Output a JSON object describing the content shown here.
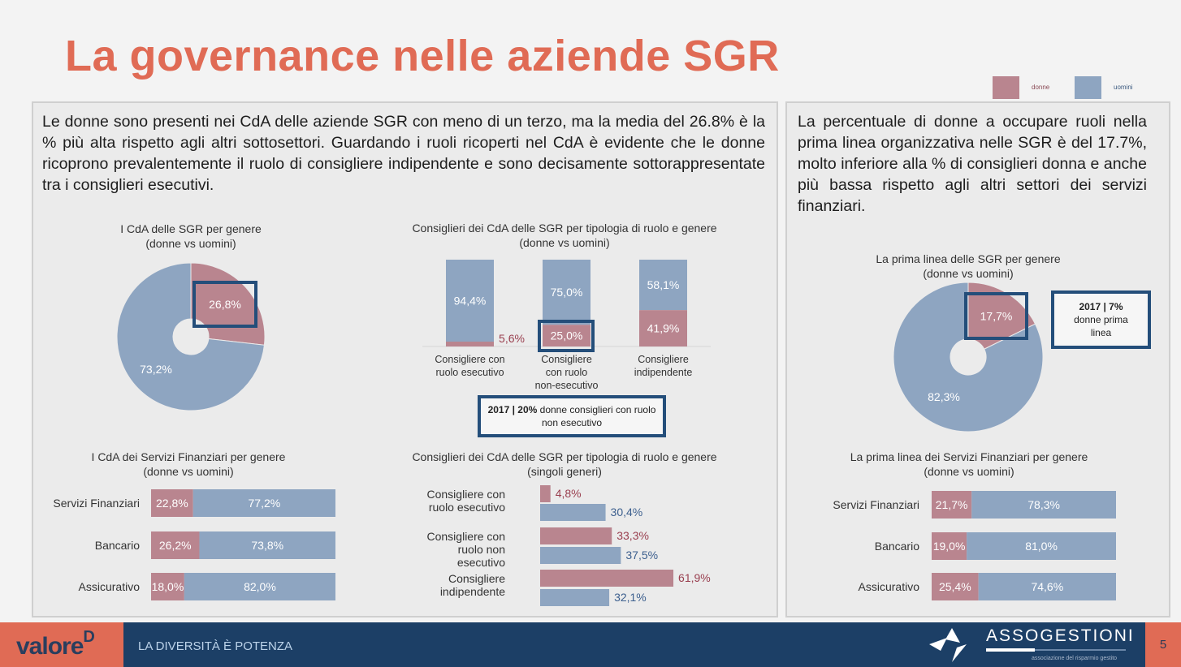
{
  "title": "La governance nelle aziende SGR",
  "legend": {
    "donne": "donne",
    "uomini": "uomini"
  },
  "colors": {
    "donne": "#b9858f",
    "uomini": "#8ea5c1",
    "accent": "#e06b55",
    "navy": "#1c3f66",
    "box": "#244e7a"
  },
  "left_text": "Le donne sono presenti nei CdA delle aziende SGR con meno di un terzo, ma la media del 26.8% è la % più alta rispetto agli altri sottosettori. Guardando i ruoli ricoperti nel CdA è evidente che le donne ricoprono prevalentemente il ruolo di consigliere indipendente e sono decisamente sottorappresentate tra i consiglieri esecutivi.",
  "right_text": "La percentuale di donne a occupare ruoli nella prima linea organizzativa nelle SGR è del 17.7%, molto inferiore alla % di consiglieri donna e anche più bassa rispetto agli altri settori dei servizi finanziari.",
  "notes": {
    "board": {
      "bold": "2017 | 20%",
      "text": " donne consiglieri con ruolo non esecutivo"
    },
    "firstline": {
      "bold": "2017 | 7%",
      "text": "donne prima linea"
    }
  },
  "chart_data": [
    {
      "id": "cda-sgr",
      "type": "pie",
      "title": "I CdA delle SGR per genere",
      "subtitle": "(donne vs uomini)",
      "labels": [
        "donne",
        "uomini"
      ],
      "values": [
        26.8,
        73.2
      ],
      "value_labels": [
        "26,8%",
        "73,2%"
      ]
    },
    {
      "id": "roles-stacked",
      "type": "bar",
      "stacked": true,
      "title": "Consiglieri dei CdA delle SGR per tipologia di  ruolo e genere",
      "subtitle": "(donne vs uomini)",
      "categories": [
        "Consigliere con ruolo esecutivo",
        "Consigliere con ruolo non-esecutivo",
        "Consigliere indipendente"
      ],
      "series": [
        {
          "name": "donne",
          "values": [
            5.6,
            25.0,
            41.9
          ],
          "labels": [
            "5,6%",
            "25,0%",
            "41,9%"
          ]
        },
        {
          "name": "uomini",
          "values": [
            94.4,
            75.0,
            58.1
          ],
          "labels": [
            "94,4%",
            "75,0%",
            "58,1%"
          ]
        }
      ],
      "ylim": [
        0,
        100
      ]
    },
    {
      "id": "cda-finserv",
      "type": "bar",
      "orientation": "horizontal",
      "stacked": true,
      "title": "I CdA dei Servizi Finanziari per genere",
      "subtitle": "(donne vs uomini)",
      "categories": [
        "Servizi Finanziari",
        "Bancario",
        "Assicurativo"
      ],
      "series": [
        {
          "name": "donne",
          "values": [
            22.8,
            26.2,
            18.0
          ],
          "labels": [
            "22,8%",
            "26,2%",
            "18,0%"
          ]
        },
        {
          "name": "uomini",
          "values": [
            77.2,
            73.8,
            82.0
          ],
          "labels": [
            "77,2%",
            "73,8%",
            "82,0%"
          ]
        }
      ]
    },
    {
      "id": "roles-single",
      "type": "bar",
      "orientation": "horizontal",
      "title": "Consiglieri dei CdA delle SGR per tipologia di ruolo e genere",
      "subtitle": "(singoli generi)",
      "categories": [
        "Consigliere con ruolo esecutivo",
        "Consigliere con ruolo non esecutivo",
        "Consigliere indipendente"
      ],
      "series": [
        {
          "name": "donne",
          "values": [
            4.8,
            33.3,
            61.9
          ],
          "labels": [
            "4,8%",
            "33,3%",
            "61,9%"
          ]
        },
        {
          "name": "uomini",
          "values": [
            30.4,
            37.5,
            32.1
          ],
          "labels": [
            "30,4%",
            "37,5%",
            "32,1%"
          ]
        }
      ]
    },
    {
      "id": "firstline-sgr",
      "type": "pie",
      "title": "La prima linea delle SGR per genere",
      "subtitle": "(donne vs uomini)",
      "labels": [
        "donne",
        "uomini"
      ],
      "values": [
        17.7,
        82.3
      ],
      "value_labels": [
        "17,7%",
        "82,3%"
      ]
    },
    {
      "id": "firstline-finserv",
      "type": "bar",
      "orientation": "horizontal",
      "stacked": true,
      "title": "La prima linea dei Servizi Finanziari per genere",
      "subtitle": "(donne vs uomini)",
      "categories": [
        "Servizi Finanziari",
        "Bancario",
        "Assicurativo"
      ],
      "series": [
        {
          "name": "donne",
          "values": [
            21.7,
            19.0,
            25.4
          ],
          "labels": [
            "21,7%",
            "19,0%",
            "25,4%"
          ]
        },
        {
          "name": "uomini",
          "values": [
            78.3,
            81.0,
            74.6
          ],
          "labels": [
            "78,3%",
            "81,0%",
            "74,6%"
          ]
        }
      ]
    }
  ],
  "footer": {
    "logo": "valore",
    "logo_sup": "D",
    "slogan": "LA DIVERSITÀ È POTENZA",
    "brand": "ASSOGESTIONI",
    "brand_sub": "associazione del risparmio gestito",
    "page": "5"
  }
}
